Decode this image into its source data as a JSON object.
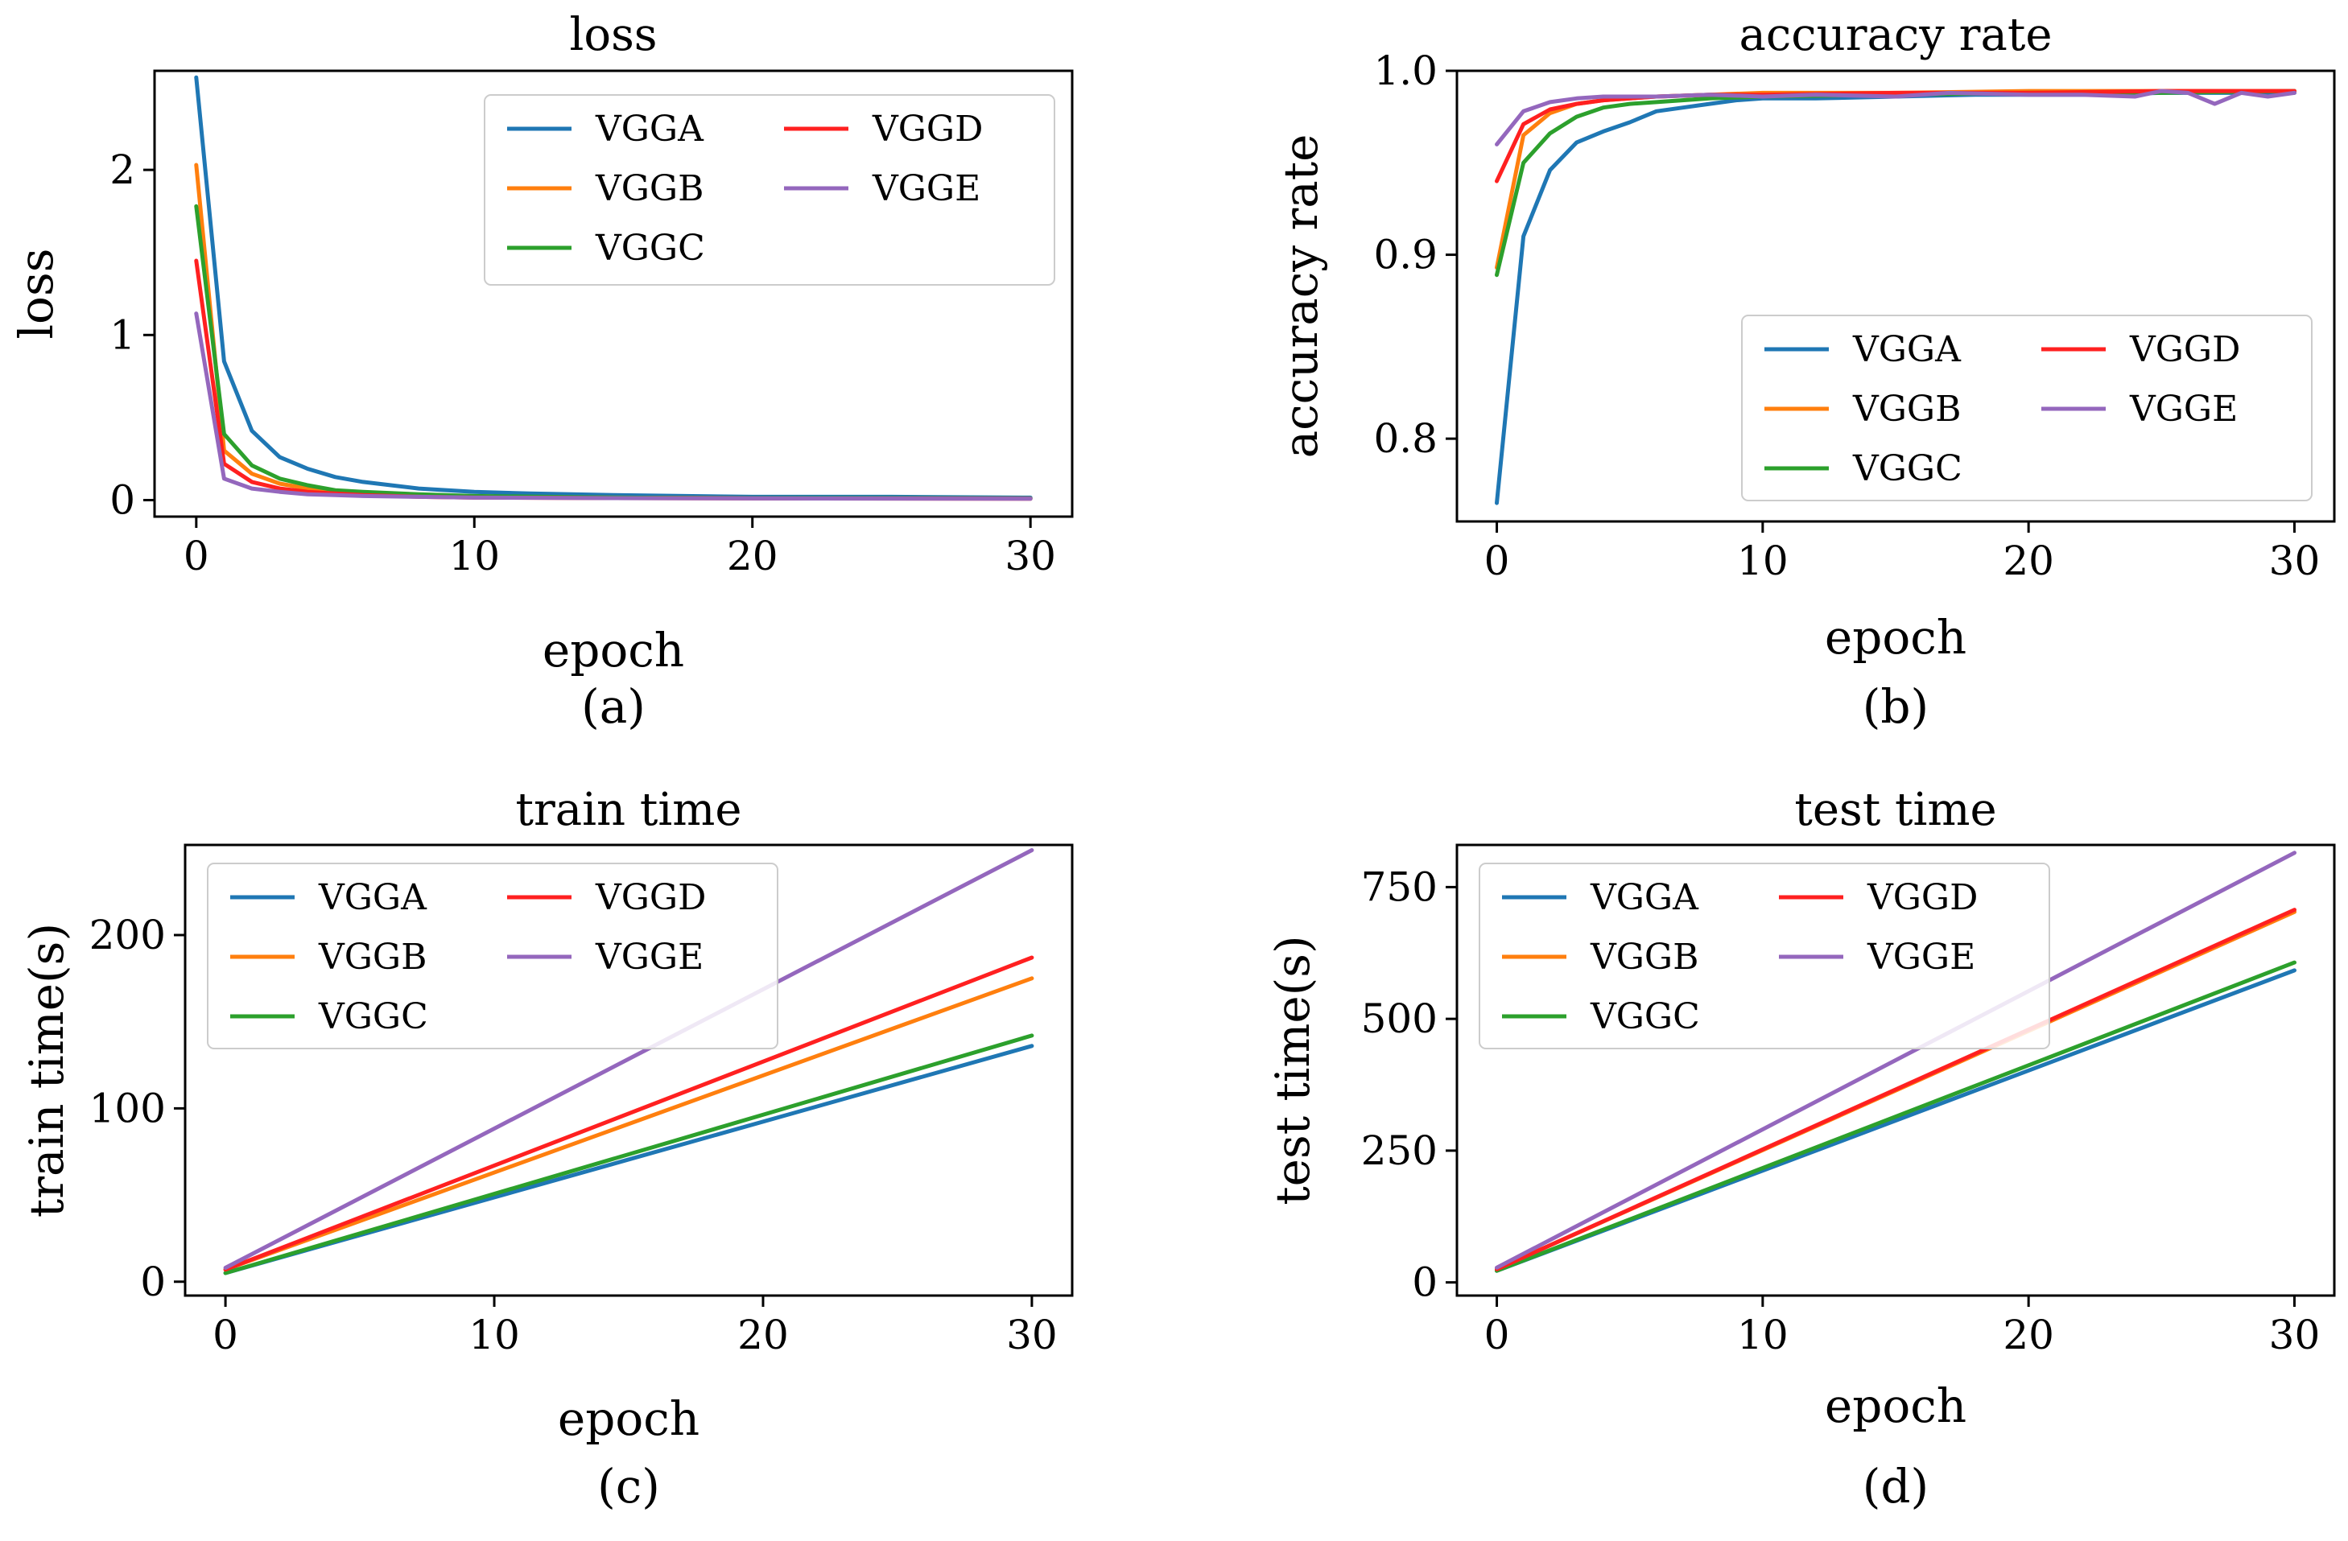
{
  "colors": {
    "VGGA": "#1f77b4",
    "VGGB": "#ff7f0e",
    "VGGC": "#2ca02c",
    "VGGD": "#ff2020",
    "VGGE": "#9467bd"
  },
  "chart_data": [
    {
      "id": "a",
      "type": "line",
      "title": "loss",
      "xlabel": "epoch",
      "ylabel": "loss",
      "caption": "(a)",
      "xlim": [
        -1.5,
        31.5
      ],
      "ylim": [
        -0.1,
        2.6
      ],
      "xticks": [
        0,
        10,
        20,
        30
      ],
      "yticks": [
        0,
        1,
        2
      ],
      "legend_placement": "top-right",
      "series": [
        {
          "name": "VGGA",
          "x": [
            0,
            1,
            2,
            3,
            4,
            5,
            6,
            7,
            8,
            10,
            12,
            15,
            20,
            25,
            30
          ],
          "y": [
            2.56,
            0.84,
            0.42,
            0.26,
            0.19,
            0.14,
            0.11,
            0.09,
            0.07,
            0.05,
            0.04,
            0.03,
            0.02,
            0.02,
            0.015
          ]
        },
        {
          "name": "VGGB",
          "x": [
            0,
            1,
            2,
            3,
            4,
            5,
            6,
            8,
            10,
            15,
            20,
            30
          ],
          "y": [
            2.03,
            0.3,
            0.16,
            0.1,
            0.07,
            0.05,
            0.04,
            0.03,
            0.02,
            0.015,
            0.012,
            0.01
          ]
        },
        {
          "name": "VGGC",
          "x": [
            0,
            1,
            2,
            3,
            4,
            5,
            6,
            8,
            10,
            15,
            20,
            30
          ],
          "y": [
            1.78,
            0.4,
            0.21,
            0.13,
            0.09,
            0.06,
            0.05,
            0.035,
            0.025,
            0.015,
            0.012,
            0.01
          ]
        },
        {
          "name": "VGGD",
          "x": [
            0,
            1,
            2,
            3,
            4,
            5,
            6,
            8,
            10,
            15,
            20,
            30
          ],
          "y": [
            1.45,
            0.22,
            0.11,
            0.07,
            0.05,
            0.04,
            0.03,
            0.02,
            0.015,
            0.012,
            0.01,
            0.008
          ]
        },
        {
          "name": "VGGE",
          "x": [
            0,
            1,
            2,
            3,
            4,
            5,
            6,
            8,
            10,
            15,
            20,
            30
          ],
          "y": [
            1.13,
            0.13,
            0.07,
            0.05,
            0.035,
            0.03,
            0.025,
            0.02,
            0.015,
            0.012,
            0.01,
            0.008
          ]
        }
      ]
    },
    {
      "id": "b",
      "type": "line",
      "title": "accuracy rate",
      "xlabel": "epoch",
      "ylabel": "accuracy rate",
      "caption": "(b)",
      "xlim": [
        -1.5,
        31.5
      ],
      "ylim": [
        0.755,
        1.0
      ],
      "xticks": [
        0,
        10,
        20,
        30
      ],
      "yticks": [
        0.8,
        0.9,
        1.0
      ],
      "legend_placement": "bottom-right",
      "series": [
        {
          "name": "VGGA",
          "x": [
            0,
            1,
            2,
            3,
            4,
            5,
            6,
            7,
            8,
            9,
            10,
            12,
            15,
            18,
            20,
            22,
            25,
            28,
            30
          ],
          "y": [
            0.765,
            0.91,
            0.946,
            0.961,
            0.967,
            0.972,
            0.978,
            0.98,
            0.982,
            0.984,
            0.985,
            0.985,
            0.986,
            0.987,
            0.987,
            0.987,
            0.988,
            0.988,
            0.988
          ]
        },
        {
          "name": "VGGB",
          "x": [
            0,
            1,
            2,
            3,
            4,
            5,
            6,
            8,
            10,
            15,
            20,
            25,
            30
          ],
          "y": [
            0.893,
            0.965,
            0.977,
            0.982,
            0.984,
            0.985,
            0.986,
            0.987,
            0.988,
            0.988,
            0.989,
            0.989,
            0.989
          ]
        },
        {
          "name": "VGGC",
          "x": [
            0,
            1,
            2,
            3,
            4,
            5,
            6,
            8,
            10,
            15,
            20,
            25,
            30
          ],
          "y": [
            0.889,
            0.95,
            0.966,
            0.975,
            0.98,
            0.982,
            0.983,
            0.985,
            0.986,
            0.987,
            0.988,
            0.988,
            0.989
          ]
        },
        {
          "name": "VGGD",
          "x": [
            0,
            1,
            2,
            3,
            4,
            5,
            6,
            8,
            10,
            15,
            20,
            25,
            30
          ],
          "y": [
            0.94,
            0.971,
            0.979,
            0.982,
            0.984,
            0.985,
            0.986,
            0.987,
            0.987,
            0.988,
            0.988,
            0.989,
            0.989
          ]
        },
        {
          "name": "VGGE",
          "x": [
            0,
            1,
            2,
            3,
            4,
            5,
            6,
            8,
            10,
            12,
            15,
            17,
            20,
            22,
            24,
            25,
            26,
            27,
            28,
            29,
            30
          ],
          "y": [
            0.96,
            0.978,
            0.983,
            0.985,
            0.986,
            0.986,
            0.986,
            0.987,
            0.986,
            0.987,
            0.986,
            0.988,
            0.987,
            0.987,
            0.986,
            0.989,
            0.988,
            0.982,
            0.988,
            0.986,
            0.988
          ]
        }
      ]
    },
    {
      "id": "c",
      "type": "line",
      "title": "train time",
      "xlabel": "epoch",
      "ylabel": "train time(s)",
      "caption": "(c)",
      "xlim": [
        -1.5,
        31.5
      ],
      "ylim": [
        -8,
        252
      ],
      "xticks": [
        0,
        10,
        20,
        30
      ],
      "yticks": [
        0,
        100,
        200
      ],
      "legend_placement": "top-left",
      "series": [
        {
          "name": "VGGA",
          "x": [
            0,
            30
          ],
          "y": [
            5,
            136
          ]
        },
        {
          "name": "VGGB",
          "x": [
            0,
            30
          ],
          "y": [
            7,
            175
          ]
        },
        {
          "name": "VGGC",
          "x": [
            0,
            30
          ],
          "y": [
            5,
            142
          ]
        },
        {
          "name": "VGGD",
          "x": [
            0,
            30
          ],
          "y": [
            7,
            187
          ]
        },
        {
          "name": "VGGE",
          "x": [
            0,
            30
          ],
          "y": [
            8,
            249
          ]
        }
      ]
    },
    {
      "id": "d",
      "type": "line",
      "title": "test time",
      "xlabel": "epoch",
      "ylabel": "test time(s)",
      "caption": "(d)",
      "xlim": [
        -1.5,
        31.5
      ],
      "ylim": [
        -25,
        830
      ],
      "xticks": [
        0,
        10,
        20,
        30
      ],
      "yticks": [
        0,
        250,
        500,
        750
      ],
      "legend_placement": "top-left",
      "series": [
        {
          "name": "VGGA",
          "x": [
            0,
            30
          ],
          "y": [
            22,
            592
          ]
        },
        {
          "name": "VGGB",
          "x": [
            0,
            30
          ],
          "y": [
            25,
            703
          ]
        },
        {
          "name": "VGGC",
          "x": [
            0,
            30
          ],
          "y": [
            22,
            607
          ]
        },
        {
          "name": "VGGD",
          "x": [
            0,
            30
          ],
          "y": [
            25,
            707
          ]
        },
        {
          "name": "VGGE",
          "x": [
            0,
            30
          ],
          "y": [
            28,
            815
          ]
        }
      ]
    }
  ]
}
